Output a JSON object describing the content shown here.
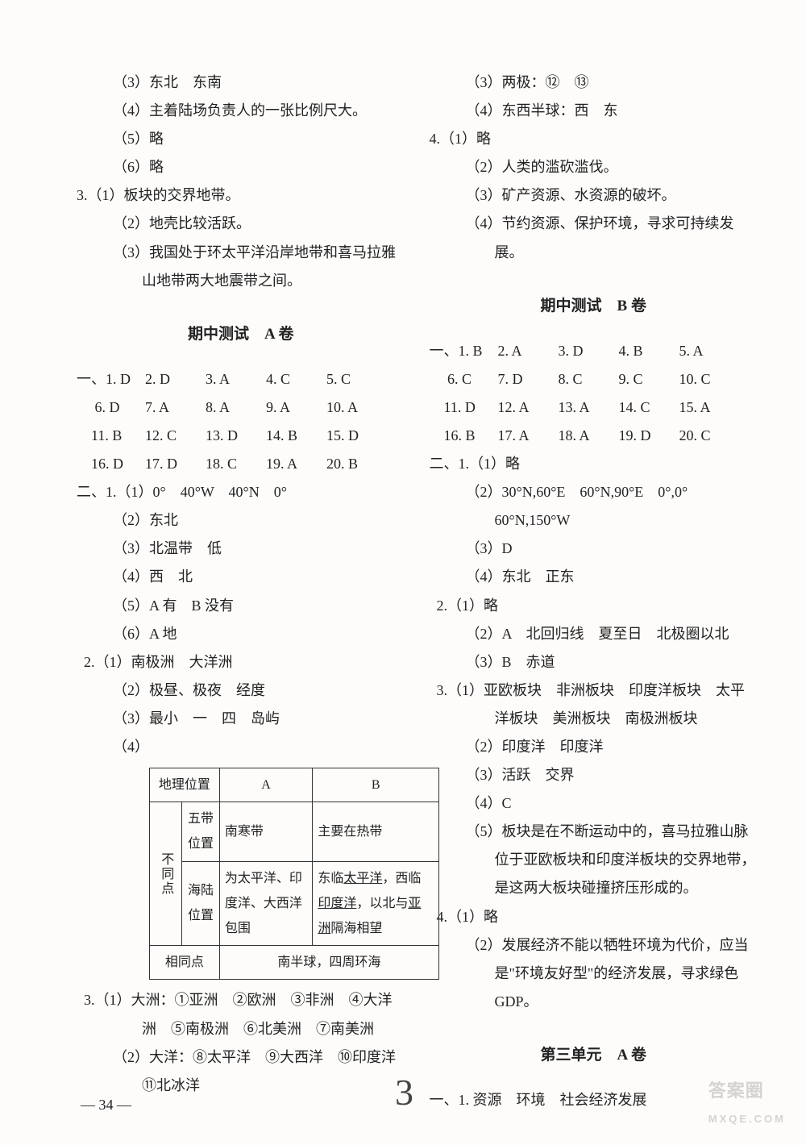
{
  "left": {
    "pre": [
      "（3）东北　东南",
      "（4）主着陆场负责人的一张比例尺大。",
      "（5）略",
      "（6）略"
    ],
    "q3": {
      "head": "3.（1）板块的交界地带。",
      "items": [
        "（2）地壳比较活跃。",
        "（3）我国处于环太平洋沿岸地带和喜马拉雅山地带两大地震带之间。"
      ]
    },
    "titleA": "期中测试　A 卷",
    "mcA": {
      "row1": [
        "一、1. D",
        "2. D",
        "3. A",
        "4. C",
        "5. C"
      ],
      "row2": [
        "　 6. D",
        "7. A",
        "8. A",
        "9. A",
        "10. A"
      ],
      "row3": [
        "　11. B",
        "12. C",
        "13. D",
        "14. B",
        "15. D"
      ],
      "row4": [
        "　16. D",
        "17. D",
        "18. C",
        "19. A",
        "20. B"
      ]
    },
    "partA2": {
      "q1": [
        "二、1.（1）0°　40°W　40°N　0°",
        "（2）东北",
        "（3）北温带　低",
        "（4）西　北",
        "（5）A 有　B 没有",
        "（6）A 地"
      ],
      "q2": [
        "2.（1）南极洲　大洋洲",
        "（2）极昼、极夜　经度",
        "（3）最小　一　四　岛屿",
        "（4）"
      ]
    },
    "table": {
      "header": [
        "地理位置",
        "A",
        "B"
      ],
      "diffLabel": "不同点",
      "row1": [
        "五带位置",
        "南寒带",
        "主要在热带"
      ],
      "row2": [
        "海陆位置",
        "为太平洋、印度洋、大西洋包围",
        "东临<u>太平洋</u>，西临<u>印度洋</u>，以北与<u>亚洲</u>隔海相望"
      ],
      "sameRow": [
        "相同点",
        "南半球，四周环海"
      ]
    },
    "q3b": [
      "3.（1）大洲：①亚洲　②欧洲　③非洲　④大洋洲　⑤南极洲　⑥北美洲　⑦南美洲",
      "（2）大洋：⑧太平洋　⑨大西洋　⑩印度洋　⑪北冰洋"
    ]
  },
  "right": {
    "top": [
      "（3）两极：⑫　⑬",
      "（4）东西半球：西　东"
    ],
    "q4": [
      "4.（1）略",
      "（2）人类的滥砍滥伐。",
      "（3）矿产资源、水资源的破坏。",
      "（4）节约资源、保护环境，寻求可持续发展。"
    ],
    "titleB": "期中测试　B 卷",
    "mcB": {
      "row1": [
        "一、1. B",
        "2. A",
        "3. D",
        "4. B",
        "5. A"
      ],
      "row2": [
        "　 6. C",
        "7. D",
        "8. C",
        "9. C",
        "10. C"
      ],
      "row3": [
        "　11. D",
        "12. A",
        "13. A",
        "14. C",
        "15. A"
      ],
      "row4": [
        "　16. B",
        "17. A",
        "18. A",
        "19. D",
        "20. C"
      ]
    },
    "partB2": {
      "q1": [
        "二、1.（1）略",
        "（2）30°N,60°E　60°N,90°E　0°,0°　60°N,150°W",
        "（3）D",
        "（4）东北　正东"
      ],
      "q2": [
        "2.（1）略",
        "（2）A　北回归线　夏至日　北极圈以北",
        "（3）B　赤道"
      ],
      "q3": [
        "3.（1）亚欧板块　非洲板块　印度洋板块　太平洋板块　美洲板块　南极洲板块",
        "（2）印度洋　印度洋",
        "（3）活跃　交界",
        "（4）C",
        "（5）板块是在不断运动中的，喜马拉雅山脉位于亚欧板块和印度洋板块的交界地带，是这两大板块碰撞挤压形成的。"
      ],
      "q4": [
        "4.（1）略",
        "（2）发展经济不能以牺牲环境为代价，应当是\"环境友好型\"的经济发展，寻求绿色GDP。"
      ]
    },
    "titleUnit3": "第三单元　A 卷",
    "unit3": "一、1. 资源　环境　社会经济发展"
  },
  "footer": {
    "page": "— 34 —",
    "hand": "3",
    "wm1": "答案圈",
    "wm2": "MXQE.COM"
  }
}
